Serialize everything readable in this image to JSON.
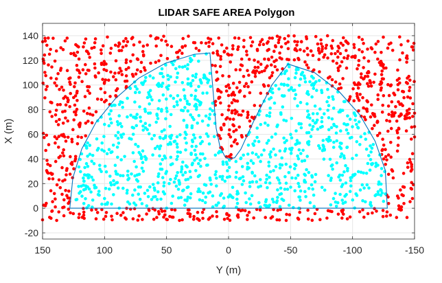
{
  "chart_data": {
    "type": "scatter",
    "title": "LIDAR SAFE AREA Polygon",
    "xlabel": "Y (m)",
    "ylabel": "X (m)",
    "xlim": [
      150,
      -150
    ],
    "x_reversed": true,
    "ylim": [
      -25,
      150
    ],
    "grid": true,
    "box": true,
    "x_ticks": [
      150,
      100,
      50,
      0,
      -50,
      -100,
      -150
    ],
    "x_tick_labels": [
      "150",
      "100",
      "50",
      "0",
      "-50",
      "-100",
      "-150"
    ],
    "y_ticks": [
      -20,
      0,
      20,
      40,
      60,
      80,
      100,
      120,
      140
    ],
    "y_tick_labels": [
      "-20",
      "0",
      "20",
      "40",
      "60",
      "80",
      "100",
      "120",
      "140"
    ],
    "polygon": {
      "color": "#0072bd",
      "vertices": [
        [
          128,
          0
        ],
        [
          125.6,
          24.5
        ],
        [
          118.4,
          48.0
        ],
        [
          106.8,
          69.8
        ],
        [
          91.2,
          89.0
        ],
        [
          72.4,
          105.5
        ],
        [
          51.0,
          117.6
        ],
        [
          27.5,
          124.9
        ],
        [
          15,
          126
        ],
        [
          10,
          65
        ],
        [
          7,
          50
        ],
        [
          3,
          42
        ],
        [
          0,
          40
        ],
        [
          -5,
          41
        ],
        [
          -10,
          48
        ],
        [
          -20,
          70
        ],
        [
          -35,
          100
        ],
        [
          -48,
          117
        ],
        [
          -69.4,
          110.0
        ],
        [
          -89.1,
          94.7
        ],
        [
          -105.7,
          76.0
        ],
        [
          -118.2,
          54.4
        ],
        [
          -126.4,
          30.8
        ],
        [
          -128,
          0
        ]
      ]
    },
    "series": [
      {
        "color": "#ff0000",
        "points": []
      },
      {
        "color": "#00ffff",
        "points": []
      }
    ],
    "scatter_sampling": {
      "seed": 12345,
      "total_points": 2000,
      "x_range": [
        -150,
        150
      ],
      "y_range": [
        -10,
        140
      ]
    }
  }
}
